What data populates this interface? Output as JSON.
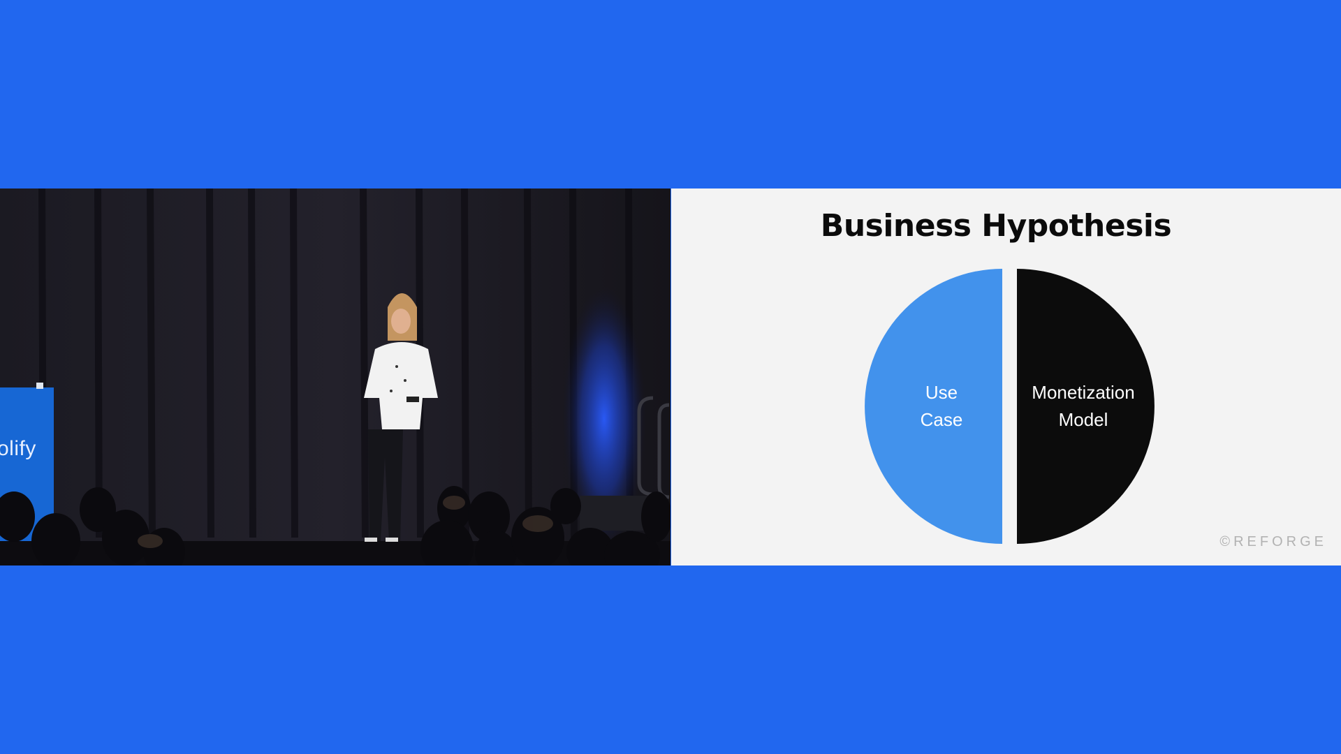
{
  "stage": {
    "podium_text": "olify"
  },
  "slide": {
    "title": "Business Hypothesis",
    "copyright": "©REFORGE",
    "slices": [
      {
        "line1": "Use",
        "line2": "Case",
        "color": "#4292ec",
        "text_color": "#ffffff"
      },
      {
        "line1": "Monetization",
        "line2": "Model",
        "color": "#0c0c0c",
        "text_color": "#ffffff"
      }
    ]
  },
  "colors": {
    "background": "#2167ef",
    "slide_background": "#f3f3f3",
    "stage_background": "#16141c"
  }
}
